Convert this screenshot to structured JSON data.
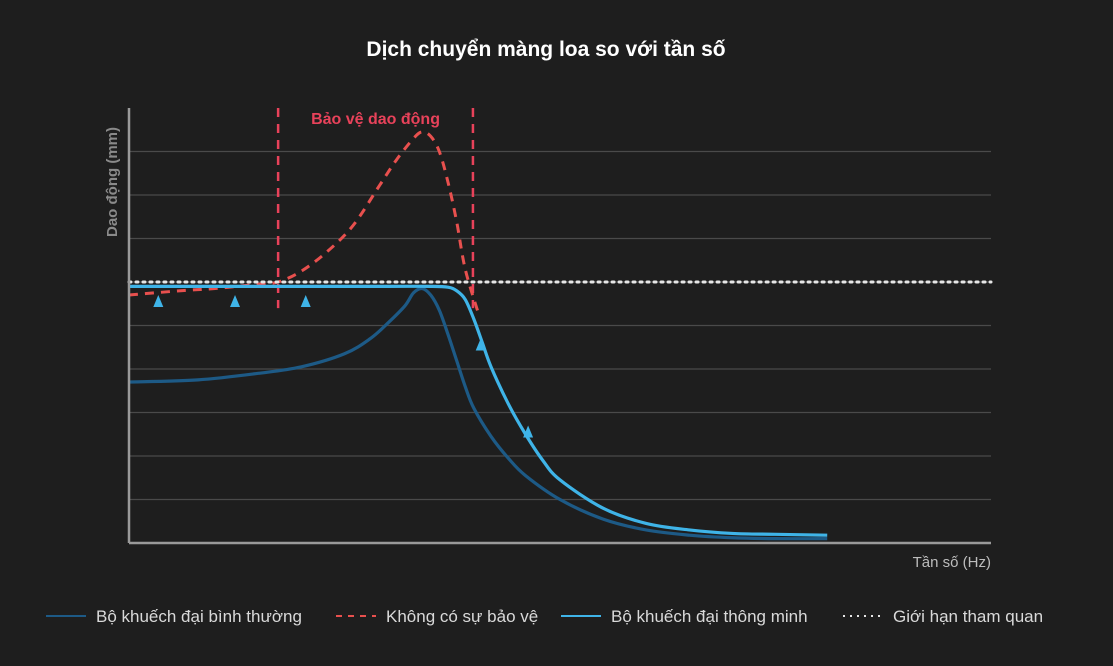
{
  "chart_data": {
    "type": "line",
    "title": "Dịch chuyển màng loa so với tần số",
    "xlabel": "Tần số (Hz)",
    "ylabel": "Dao động (mm)",
    "xlim": [
      0,
      100
    ],
    "ylim": [
      0,
      10
    ],
    "grid": "horizontal",
    "legend_position": "bottom",
    "excursion_limit": 6.0,
    "protection_zone": {
      "label": "Bảo vệ dao động",
      "x_start": 17.3,
      "x_end": 39.9,
      "color": "#e8425a"
    },
    "series": [
      {
        "name": "Bộ khuếch đại bình thường",
        "style": "solid",
        "color": "#1d5a86",
        "x": [
          0,
          8,
          15,
          20,
          25,
          28,
          30,
          32,
          33,
          34,
          35,
          36,
          37,
          38,
          39,
          40,
          42,
          44,
          46,
          50,
          55,
          60,
          65,
          70,
          75,
          80,
          81
        ],
        "y": [
          3.7,
          3.75,
          3.9,
          4.05,
          4.35,
          4.7,
          5.05,
          5.45,
          5.75,
          5.85,
          5.7,
          5.35,
          4.8,
          4.2,
          3.6,
          3.1,
          2.45,
          1.95,
          1.55,
          1.0,
          0.55,
          0.3,
          0.18,
          0.12,
          0.1,
          0.1,
          0.1
        ]
      },
      {
        "name": "Không có sự bảo vệ",
        "style": "dashed",
        "color": "#e8504e",
        "x": [
          0,
          6,
          10,
          15,
          17.3,
          20,
          23,
          26,
          29,
          31,
          33,
          34,
          35,
          36,
          37,
          38,
          39,
          40.5
        ],
        "y": [
          5.7,
          5.8,
          5.85,
          5.95,
          6.0,
          6.25,
          6.7,
          7.3,
          8.2,
          8.8,
          9.3,
          9.45,
          9.35,
          9.0,
          8.3,
          7.4,
          6.3,
          5.3
        ]
      },
      {
        "name": "Bộ khuếch đại thông minh",
        "style": "solid",
        "color": "#3fb4e8",
        "x": [
          0,
          10,
          20,
          30,
          35,
          37,
          38,
          39,
          40,
          41,
          42,
          44,
          46,
          48,
          50,
          55,
          60,
          65,
          70,
          75,
          81
        ],
        "y": [
          5.9,
          5.9,
          5.9,
          5.9,
          5.9,
          5.88,
          5.8,
          5.6,
          5.15,
          4.6,
          4.05,
          3.2,
          2.5,
          1.9,
          1.45,
          0.8,
          0.45,
          0.3,
          0.22,
          0.2,
          0.18
        ]
      },
      {
        "name": "Giới hạn tham quan",
        "style": "dotted",
        "color": "#e6e6e6",
        "x": [
          0,
          100
        ],
        "y": [
          6.0,
          6.0
        ]
      }
    ],
    "arrows": [
      {
        "x": 3.4,
        "y_from": 4.4,
        "y_to": 5.7
      },
      {
        "x": 12.3,
        "y_from": 4.4,
        "y_to": 5.7
      },
      {
        "x": 20.5,
        "y_from": 4.4,
        "y_to": 5.7
      },
      {
        "x": 40.8,
        "y_from": 3.65,
        "y_to": 4.7
      },
      {
        "x": 46.3,
        "y_from": 1.75,
        "y_to": 2.7
      }
    ]
  },
  "legend": [
    {
      "label": "Bộ khuếch đại bình thường",
      "style": "solid",
      "color": "#1d5a86"
    },
    {
      "label": "Không có sự bảo vệ",
      "style": "dashed",
      "color": "#e8504e"
    },
    {
      "label": "Bộ khuếch đại thông minh",
      "style": "solid",
      "color": "#3fb4e8"
    },
    {
      "label": "Giới hạn tham quan",
      "style": "dotted",
      "color": "#e6e6e6"
    }
  ]
}
